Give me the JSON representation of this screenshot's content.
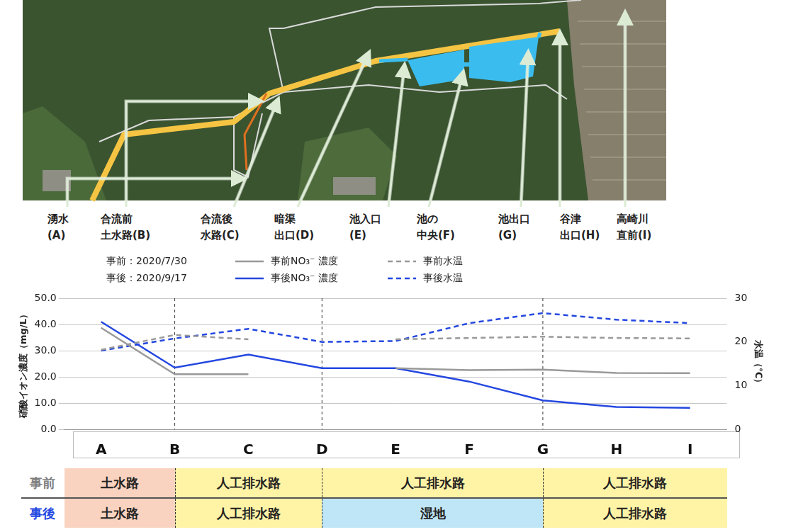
{
  "photo_labels": [
    [
      "湧水",
      "(A)"
    ],
    [
      "合流前",
      "土水路(B)"
    ],
    [
      "合流後",
      "水路(C)"
    ],
    [
      "暗渠",
      "出口(D)"
    ],
    [
      "池入口",
      "(E)"
    ],
    [
      "池の",
      "中央(F)"
    ],
    [
      "池出口",
      "(G)"
    ],
    [
      "谷津",
      "出口(H)"
    ],
    [
      "高崎川",
      "直前(I)"
    ]
  ],
  "chart_data": {
    "type": "line",
    "annotations": [
      "事前：2020/7/30",
      "事後：2020/9/17"
    ],
    "categories": [
      "A",
      "B",
      "C",
      "D",
      "E",
      "F",
      "G",
      "H",
      "I"
    ],
    "ylabel": "硝酸イオン濃度（mg/L）",
    "y2label": "水温（℃）",
    "ylim": [
      0,
      50
    ],
    "yticks": [
      {
        "value": 0,
        "label": "0.0"
      },
      {
        "value": 10,
        "label": "10.0"
      },
      {
        "value": 20,
        "label": "20.0"
      },
      {
        "value": 30,
        "label": "30.0"
      },
      {
        "value": 40,
        "label": "40.0"
      },
      {
        "value": 50,
        "label": "50.0"
      }
    ],
    "y2lim": [
      0,
      30
    ],
    "y2ticks": [
      0,
      10,
      20,
      30
    ],
    "grid": true,
    "legend": "top",
    "series": [
      {
        "name": "事前NO₃⁻ 濃度",
        "color": "#999999",
        "line_style": "solid",
        "values": [
          38.7,
          21.0,
          21.0,
          null,
          23.3,
          22.6,
          22.8,
          21.5,
          21.4
        ]
      },
      {
        "name": "事前水温",
        "color": "#999999",
        "line_style": "dashed",
        "axis": "y2",
        "values": [
          18.2,
          21.6,
          20.6,
          null,
          20.6,
          20.9,
          21.2,
          20.9,
          20.8
        ]
      },
      {
        "name": "事後NO₃⁻ 濃度",
        "color": "#2447e0",
        "line_style": "solid",
        "values": [
          41.0,
          23.5,
          28.5,
          23.3,
          23.3,
          18.2,
          11.0,
          8.5,
          8.2
        ]
      },
      {
        "name": "事後水温",
        "color": "#2447e0",
        "line_style": "dashed",
        "axis": "y2",
        "values": [
          18.0,
          20.8,
          23.0,
          20.0,
          20.2,
          24.3,
          26.6,
          25.1,
          24.3
        ]
      }
    ]
  },
  "table": {
    "boundaries": [
      "B",
      "D",
      "G"
    ],
    "rows": [
      {
        "label": "事前",
        "color": "#7f7f7f",
        "cells": [
          "土水路",
          "人工排水路",
          "人工排水路",
          "人工排水路"
        ],
        "colors": [
          "#f9d3c0",
          "#fff3a6",
          "#fff3a6",
          "#fff3a6"
        ]
      },
      {
        "label": "事後",
        "color": "#2447e0",
        "cells": [
          "土水路",
          "人工排水路",
          "湿地",
          "人工排水路"
        ],
        "colors": [
          "#f9d3c0",
          "#fff3a6",
          "#bfe6f6",
          "#fff3a6"
        ]
      }
    ]
  }
}
